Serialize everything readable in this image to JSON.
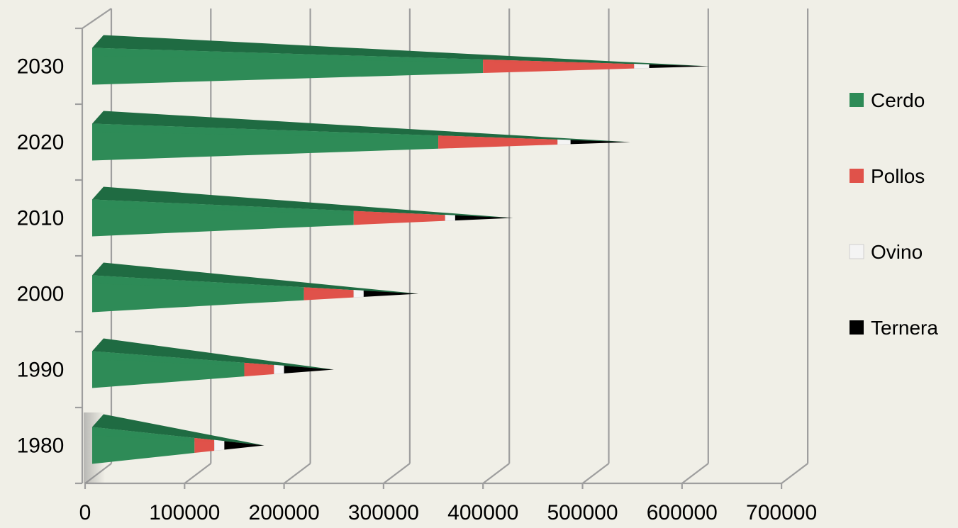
{
  "chart_data": {
    "type": "bar",
    "orientation": "horizontal",
    "stacked": true,
    "style": "3d-cone",
    "categories": [
      "1980",
      "1990",
      "2000",
      "2010",
      "2020",
      "2030"
    ],
    "series": [
      {
        "name": "Cerdo",
        "color": "#2e8b57",
        "values": [
          110000,
          160000,
          220000,
          270000,
          355000,
          400000
        ]
      },
      {
        "name": "Pollos",
        "color": "#e0524a",
        "values": [
          20000,
          30000,
          50000,
          92000,
          120000,
          152000
        ]
      },
      {
        "name": "Ovino",
        "color": "#f4f4f4",
        "values": [
          10000,
          10000,
          10000,
          10000,
          13000,
          15000
        ]
      },
      {
        "name": "Ternera",
        "color": "#000000",
        "values": [
          40000,
          50000,
          55000,
          58000,
          60000,
          60000
        ]
      }
    ],
    "x_ticks": [
      "0",
      "100000",
      "200000",
      "300000",
      "400000",
      "500000",
      "600000",
      "700000"
    ],
    "xlim": [
      0,
      700000
    ],
    "grid": true,
    "legend": "right"
  }
}
